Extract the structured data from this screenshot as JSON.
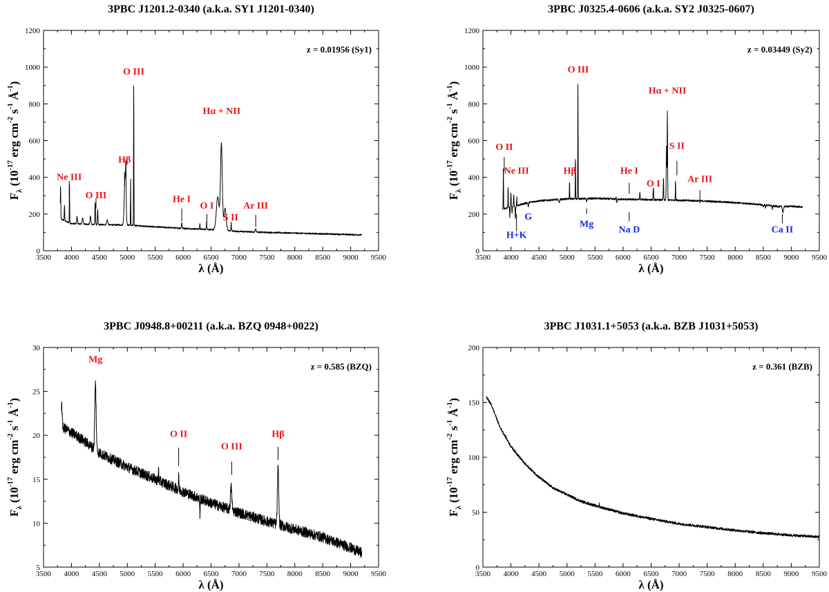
{
  "chart_data": [
    {
      "type": "line",
      "title": "3PBC J1201.2-0340 (a.k.a. SY1 J1201-0340)",
      "annotation": "z = 0.01956 (Sy1)",
      "xlabel": "λ (Å)",
      "ylabel": "F_λ (10^-17 erg cm^-2 s^-1 Å^-1)",
      "xlim": [
        3500,
        9500
      ],
      "ylim": [
        0,
        1200
      ],
      "xticks": [
        3500,
        4000,
        4500,
        5000,
        5500,
        6000,
        6500,
        7000,
        7500,
        8000,
        8500,
        9000,
        9500
      ],
      "yticks": [
        0,
        200,
        400,
        600,
        800,
        1000,
        1200
      ],
      "spectrum": {
        "xrange": [
          3800,
          9200
        ],
        "continuum": [
          [
            3800,
            175
          ],
          [
            3900,
            160
          ],
          [
            4000,
            148
          ],
          [
            4500,
            142
          ],
          [
            5000,
            140
          ],
          [
            5500,
            130
          ],
          [
            6000,
            122
          ],
          [
            6500,
            115
          ],
          [
            7000,
            105
          ],
          [
            7500,
            100
          ],
          [
            8000,
            96
          ],
          [
            8500,
            92
          ],
          [
            9000,
            88
          ],
          [
            9200,
            86
          ]
        ],
        "noise": 4,
        "lines": [
          [
            3805,
            180,
            4
          ],
          [
            3875,
            85,
            4
          ],
          [
            3965,
            210,
            3
          ],
          [
            4100,
            40,
            6
          ],
          [
            4200,
            35,
            8
          ],
          [
            4340,
            45,
            8
          ],
          [
            4425,
            120,
            5
          ],
          [
            4470,
            80,
            5
          ],
          [
            4640,
            25,
            12
          ],
          [
            4960,
            260,
            14
          ],
          [
            4975,
            200,
            5
          ],
          [
            5060,
            250,
            3
          ],
          [
            5115,
            800,
            3
          ],
          [
            5975,
            30,
            6
          ],
          [
            6300,
            30,
            4
          ],
          [
            6420,
            45,
            4
          ],
          [
            6620,
            180,
            25
          ],
          [
            6685,
            470,
            16
          ],
          [
            6750,
            120,
            20
          ],
          [
            6860,
            45,
            4
          ],
          [
            7300,
            15,
            10
          ]
        ]
      },
      "line_labels": [
        {
          "text": "Ne III",
          "x": 3960,
          "y": 385,
          "tick_top": 380,
          "tick_bot": 300,
          "color": "#e8141b"
        },
        {
          "text": "O III",
          "x": 4440,
          "y": 285,
          "tick_top": 285,
          "tick_bot": 230,
          "color": "#e8141b"
        },
        {
          "text": "Hβ",
          "x": 4950,
          "y": 480,
          "tick_top": 430,
          "tick_bot": 350,
          "color": "#e8141b"
        },
        {
          "text": "O III",
          "x": 5115,
          "y": 960,
          "tick_top": 0,
          "tick_bot": 0,
          "color": "#e8141b"
        },
        {
          "text": "Hα + NII",
          "x": 6690,
          "y": 745,
          "tick_top": 0,
          "tick_bot": 0,
          "color": "#e8141b"
        },
        {
          "text": "He I",
          "x": 5975,
          "y": 265,
          "tick_top": 230,
          "tick_bot": 160,
          "color": "#e8141b"
        },
        {
          "text": "O I",
          "x": 6425,
          "y": 230,
          "tick_top": 200,
          "tick_bot": 150,
          "color": "#e8141b"
        },
        {
          "text": "S II",
          "x": 6850,
          "y": 165,
          "tick_top": 0,
          "tick_bot": 0,
          "color": "#e8141b"
        },
        {
          "text": "Ar III",
          "x": 7300,
          "y": 230,
          "tick_top": 195,
          "tick_bot": 130,
          "color": "#e8141b"
        }
      ]
    },
    {
      "type": "line",
      "title": "3PBC J0325.4-0606 (a.k.a. SY2 J0325-0607)",
      "annotation": "z = 0.03449 (Sy2)",
      "xlabel": "λ (Å)",
      "ylabel": "F_λ (10^-17 erg cm^-2 s^-1 Å^-1)",
      "xlim": [
        3500,
        9500
      ],
      "ylim": [
        0,
        1200
      ],
      "xticks": [
        3500,
        4000,
        4500,
        5000,
        5500,
        6000,
        6500,
        7000,
        7500,
        8000,
        8500,
        9000,
        9500
      ],
      "yticks": [
        0,
        200,
        400,
        600,
        800,
        1000,
        1200
      ],
      "spectrum": {
        "xrange": [
          3850,
          9200
        ],
        "continuum": [
          [
            3850,
            225
          ],
          [
            3950,
            235
          ],
          [
            4100,
            245
          ],
          [
            4300,
            262
          ],
          [
            4500,
            272
          ],
          [
            5000,
            282
          ],
          [
            5500,
            285
          ],
          [
            6000,
            280
          ],
          [
            6500,
            278
          ],
          [
            7000,
            275
          ],
          [
            7500,
            270
          ],
          [
            8000,
            262
          ],
          [
            8500,
            250
          ],
          [
            8800,
            240
          ],
          [
            9000,
            242
          ],
          [
            9200,
            238
          ]
        ],
        "noise": 5,
        "lines": [
          [
            3865,
            220,
            3
          ],
          [
            3950,
            120,
            3
          ],
          [
            3980,
            -60,
            3
          ],
          [
            4000,
            80,
            4
          ],
          [
            4020,
            -40,
            4
          ],
          [
            4050,
            60,
            4
          ],
          [
            4080,
            -70,
            4
          ],
          [
            4105,
            50,
            3
          ],
          [
            4310,
            -25,
            5
          ],
          [
            4860,
            -15,
            8
          ],
          [
            5045,
            95,
            3
          ],
          [
            5150,
            230,
            3
          ],
          [
            5195,
            660,
            3
          ],
          [
            5350,
            -20,
            6
          ],
          [
            5875,
            10,
            5
          ],
          [
            5890,
            -18,
            6
          ],
          [
            6300,
            40,
            4
          ],
          [
            6540,
            70,
            4
          ],
          [
            6775,
            290,
            5
          ],
          [
            6790,
            480,
            4
          ],
          [
            6720,
            120,
            4
          ],
          [
            6935,
            110,
            3
          ],
          [
            8500,
            -10,
            6
          ],
          [
            8540,
            -14,
            5
          ],
          [
            8662,
            -18,
            5
          ],
          [
            8850,
            -30,
            10
          ]
        ]
      },
      "line_labels": [
        {
          "text": "O II",
          "x": 3880,
          "y": 550,
          "tick_top": 510,
          "tick_bot": 430,
          "color": "#e8141b"
        },
        {
          "text": "Ne III",
          "x": 4100,
          "y": 420,
          "tick_top": 0,
          "tick_bot": 0,
          "color": "#e8141b"
        },
        {
          "text": "Hβ",
          "x": 5050,
          "y": 420,
          "tick_top": 0,
          "tick_bot": 0,
          "color": "#e8141b"
        },
        {
          "text": "O III",
          "x": 5200,
          "y": 970,
          "tick_top": 0,
          "tick_bot": 0,
          "color": "#e8141b"
        },
        {
          "text": "Hα + NII",
          "x": 6790,
          "y": 855,
          "tick_top": 0,
          "tick_bot": 0,
          "color": "#e8141b"
        },
        {
          "text": "He I",
          "x": 6110,
          "y": 420,
          "tick_top": 370,
          "tick_bot": 310,
          "color": "#e8141b"
        },
        {
          "text": "O I",
          "x": 6540,
          "y": 350,
          "tick_top": 0,
          "tick_bot": 0,
          "color": "#e8141b"
        },
        {
          "text": "S II",
          "x": 6960,
          "y": 555,
          "tick_top": 490,
          "tick_bot": 410,
          "color": "#e8141b"
        },
        {
          "text": "Ar III",
          "x": 7370,
          "y": 375,
          "tick_top": 330,
          "tick_bot": 260,
          "color": "#e8141b"
        },
        {
          "text": "H+K",
          "x": 4100,
          "y": 70,
          "tick_top": 200,
          "tick_bot": 105,
          "color": "#1428e0"
        },
        {
          "text": "G",
          "x": 4310,
          "y": 170,
          "tick_top": 0,
          "tick_bot": 0,
          "color": "#1428e0"
        },
        {
          "text": "Mg",
          "x": 5350,
          "y": 130,
          "tick_top": 230,
          "tick_bot": 200,
          "color": "#1428e0"
        },
        {
          "text": "Na D",
          "x": 6110,
          "y": 100,
          "tick_top": 210,
          "tick_bot": 160,
          "color": "#1428e0"
        },
        {
          "text": "Ca II",
          "x": 8840,
          "y": 100,
          "tick_top": 200,
          "tick_bot": 150,
          "color": "#1428e0"
        }
      ]
    },
    {
      "type": "line",
      "title": "3PBC J0948.8+00211 (a.k.a. BZQ 0948+0022)",
      "annotation": "z = 0.585 (BZQ)",
      "xlabel": "λ (Å)",
      "ylabel": "F_λ (10^-17 erg cm^-2 s^-1 Å^-1)",
      "xlim": [
        3500,
        9500
      ],
      "ylim": [
        5,
        30
      ],
      "xticks": [
        3500,
        4000,
        4500,
        5000,
        5500,
        6000,
        6500,
        7000,
        7500,
        8000,
        8500,
        9000,
        9500
      ],
      "yticks": [
        5,
        10,
        15,
        20,
        25,
        30
      ],
      "spectrum": {
        "xrange": [
          3820,
          9200
        ],
        "continuum": [
          [
            3820,
            21
          ],
          [
            4000,
            20.3
          ],
          [
            4200,
            19.5
          ],
          [
            4500,
            18
          ],
          [
            5000,
            16.4
          ],
          [
            5500,
            15
          ],
          [
            6000,
            13.6
          ],
          [
            6500,
            12.3
          ],
          [
            7000,
            11.2
          ],
          [
            7500,
            10.2
          ],
          [
            8000,
            9.3
          ],
          [
            8500,
            8.4
          ],
          [
            9000,
            7.2
          ],
          [
            9200,
            6.6
          ]
        ],
        "noise": 0.6,
        "lines": [
          [
            3825,
            2.5,
            8
          ],
          [
            4430,
            7.5,
            12
          ],
          [
            5560,
            1.5,
            3
          ],
          [
            5920,
            2,
            4
          ],
          [
            6300,
            -2,
            4
          ],
          [
            6860,
            2.6,
            12
          ],
          [
            7700,
            6.3,
            12
          ]
        ]
      },
      "line_labels": [
        {
          "text": "Mg",
          "x": 4430,
          "y": 28.3,
          "tick_top": 0,
          "tick_bot": 0,
          "color": "#e8141b"
        },
        {
          "text": "O II",
          "x": 5920,
          "y": 19.8,
          "tick_top": 18.6,
          "tick_bot": 16.5,
          "color": "#e8141b"
        },
        {
          "text": "O III",
          "x": 6870,
          "y": 18.4,
          "tick_top": 17.0,
          "tick_bot": 15.5,
          "color": "#e8141b"
        },
        {
          "text": "Hβ",
          "x": 7700,
          "y": 19.8,
          "tick_top": 18.7,
          "tick_bot": 17.2,
          "color": "#e8141b"
        }
      ]
    },
    {
      "type": "line",
      "title": "3PBC J1031.1+5053 (a.k.a. BZB J1031+5053)",
      "annotation": "z = 0.361 (BZB)",
      "xlabel": "λ (Å)",
      "ylabel": "F_λ (10^-17 erg cm^-2 s^-1 Å^-1)",
      "xlim": [
        3500,
        9500
      ],
      "ylim": [
        0,
        200
      ],
      "xticks": [
        3500,
        4000,
        4500,
        5000,
        5500,
        6000,
        6500,
        7000,
        7500,
        8000,
        8500,
        9000,
        9500
      ],
      "yticks": [
        0,
        50,
        100,
        150,
        200
      ],
      "spectrum": {
        "xrange": [
          3560,
          9500
        ],
        "continuum": [
          [
            3560,
            155
          ],
          [
            3650,
            148
          ],
          [
            3800,
            128
          ],
          [
            4000,
            110
          ],
          [
            4250,
            94
          ],
          [
            4500,
            82
          ],
          [
            4750,
            72
          ],
          [
            5000,
            66
          ],
          [
            5250,
            60
          ],
          [
            5500,
            56
          ],
          [
            6000,
            49
          ],
          [
            6500,
            44
          ],
          [
            7000,
            39.5
          ],
          [
            7500,
            36.5
          ],
          [
            8000,
            33.5
          ],
          [
            8500,
            31
          ],
          [
            9000,
            29
          ],
          [
            9500,
            27.5
          ]
        ],
        "noise": 1.2,
        "lines": [
          [
            5577,
            4,
            2
          ]
        ]
      },
      "line_labels": []
    }
  ]
}
